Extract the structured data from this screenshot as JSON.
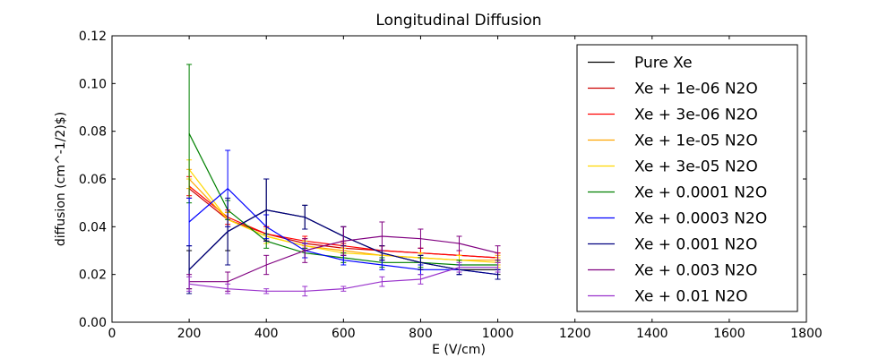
{
  "chart_data": {
    "type": "line",
    "title": "Longitudinal Diffusion",
    "xlabel": "E (V/cm)",
    "ylabel": "diffusion (cm^-1/2)$)",
    "xlim": [
      0,
      1800
    ],
    "ylim": [
      0,
      0.12
    ],
    "xticks": [
      "0",
      "200",
      "400",
      "600",
      "800",
      "1000",
      "1200",
      "1400",
      "1600",
      "1800"
    ],
    "yticks": [
      "0.00",
      "0.02",
      "0.04",
      "0.06",
      "0.08",
      "0.10",
      "0.12"
    ],
    "legend_position": "top-right",
    "grid": false,
    "x": [
      200,
      300,
      400,
      500,
      600,
      700,
      800,
      900,
      1000
    ],
    "series": [
      {
        "name": "Pure Xe",
        "color": "#000000",
        "values": [
          0.022,
          0.038,
          0.047,
          0.044,
          0.036,
          0.029,
          0.025,
          0.022,
          0.022
        ],
        "errors": [
          0.008,
          0.008,
          0.013,
          0.005,
          0.004,
          0.003,
          0.003,
          0.002,
          0.002
        ]
      },
      {
        "name": "Xe + 1e-06 N2O",
        "color": "#cc0000",
        "values": [
          0.056,
          0.043,
          0.037,
          0.033,
          0.031,
          0.03,
          0.029,
          0.028,
          0.027
        ],
        "errors": [
          0.004,
          0.003,
          0.003,
          0.002,
          0.002,
          0.002,
          0.002,
          0.002,
          0.002
        ]
      },
      {
        "name": "Xe + 3e-06 N2O",
        "color": "#ff0000",
        "values": [
          0.057,
          0.044,
          0.037,
          0.034,
          0.032,
          0.03,
          0.029,
          0.028,
          0.027
        ],
        "errors": [
          0.004,
          0.003,
          0.003,
          0.002,
          0.002,
          0.002,
          0.002,
          0.002,
          0.002
        ]
      },
      {
        "name": "Xe + 1e-05 N2O",
        "color": "#ffa500",
        "values": [
          0.06,
          0.043,
          0.036,
          0.032,
          0.03,
          0.028,
          0.027,
          0.026,
          0.026
        ],
        "errors": [
          0.004,
          0.003,
          0.003,
          0.002,
          0.002,
          0.002,
          0.002,
          0.002,
          0.002
        ]
      },
      {
        "name": "Xe + 3e-05 N2O",
        "color": "#ffd700",
        "values": [
          0.064,
          0.043,
          0.036,
          0.032,
          0.029,
          0.028,
          0.027,
          0.026,
          0.025
        ],
        "errors": [
          0.004,
          0.003,
          0.003,
          0.002,
          0.002,
          0.002,
          0.002,
          0.002,
          0.002
        ]
      },
      {
        "name": "Xe + 0.0001 N2O",
        "color": "#008000",
        "values": [
          0.079,
          0.047,
          0.034,
          0.029,
          0.027,
          0.025,
          0.025,
          0.024,
          0.024
        ],
        "errors": [
          0.029,
          0.004,
          0.003,
          0.002,
          0.002,
          0.002,
          0.002,
          0.002,
          0.002
        ]
      },
      {
        "name": "Xe + 0.0003 N2O",
        "color": "#0000ff",
        "values": [
          0.042,
          0.056,
          0.04,
          0.03,
          0.026,
          0.024,
          0.022,
          0.022,
          0.02
        ],
        "errors": [
          0.01,
          0.016,
          0.005,
          0.003,
          0.002,
          0.002,
          0.002,
          0.002,
          0.002
        ]
      },
      {
        "name": "Xe + 0.001 N2O",
        "color": "#000080",
        "values": [
          0.022,
          0.038,
          0.047,
          0.044,
          0.036,
          0.029,
          0.025,
          0.022,
          0.02
        ],
        "errors": [
          0.01,
          0.014,
          0.013,
          0.005,
          0.004,
          0.003,
          0.003,
          0.002,
          0.002
        ]
      },
      {
        "name": "Xe + 0.003 N2O",
        "color": "#800080",
        "values": [
          0.017,
          0.017,
          0.024,
          0.03,
          0.034,
          0.036,
          0.035,
          0.033,
          0.029
        ],
        "errors": [
          0.003,
          0.004,
          0.004,
          0.005,
          0.006,
          0.006,
          0.004,
          0.003,
          0.003
        ]
      },
      {
        "name": "Xe + 0.01 N2O",
        "color": "#9932cc",
        "values": [
          0.016,
          0.014,
          0.013,
          0.013,
          0.014,
          0.017,
          0.018,
          0.023,
          0.023
        ],
        "errors": [
          0.003,
          0.002,
          0.001,
          0.002,
          0.001,
          0.002,
          0.002,
          0.002,
          0.002
        ]
      }
    ]
  }
}
